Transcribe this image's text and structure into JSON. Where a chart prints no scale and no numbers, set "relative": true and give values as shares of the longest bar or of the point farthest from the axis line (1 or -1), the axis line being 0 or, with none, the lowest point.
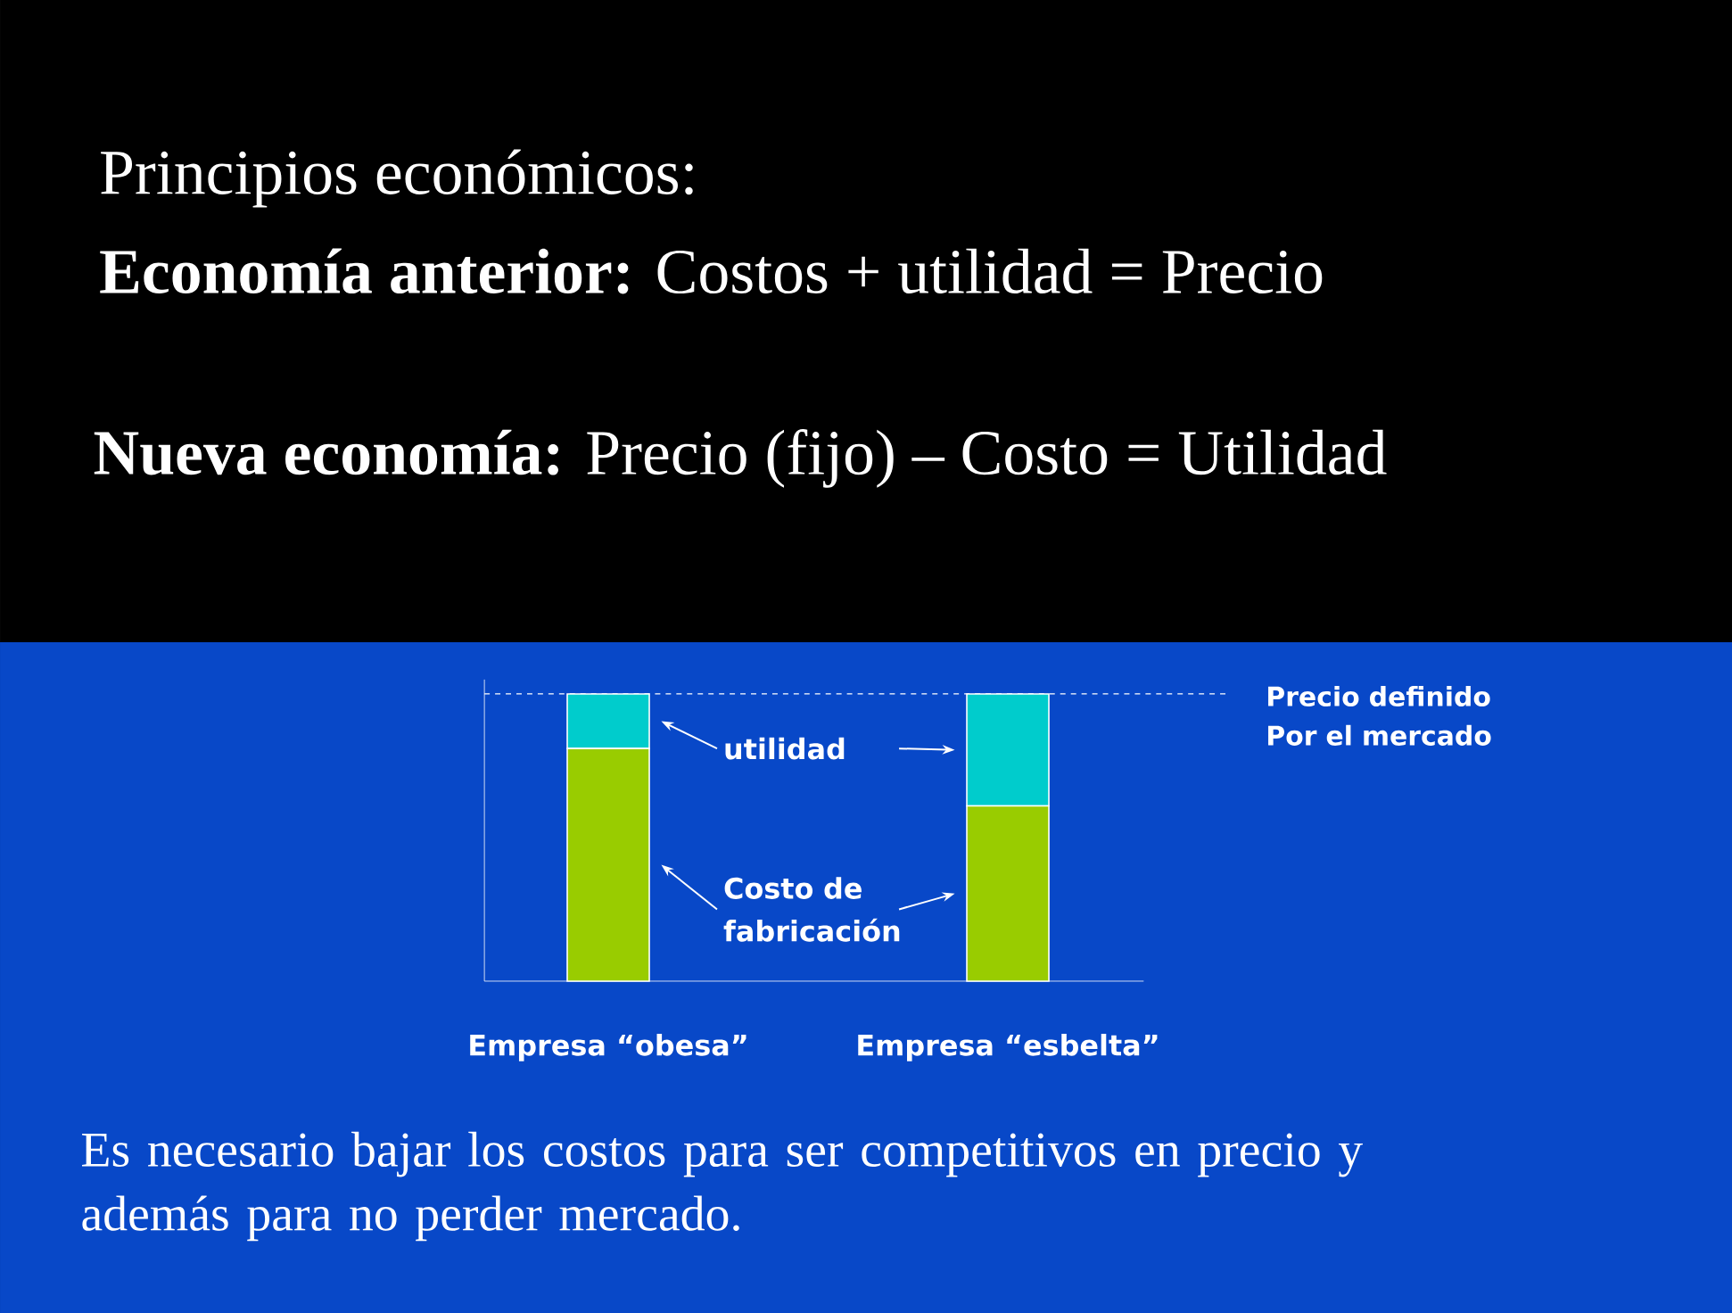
{
  "chart_data": {
    "type": "bar",
    "title": "Principios económicos:",
    "subtitle": "**Economía anterior:** Costos + utilidad = Precio",
    "categories": [
      "Empresa “obesa”",
      "Empresa “esbelta”"
    ],
    "series": [
      {
        "name": "Costo de fabricación",
        "color": "#99cc00",
        "values": [
          0.81,
          0.61
        ]
      },
      {
        "name": "utilidad",
        "color": "#00cccc",
        "values": [
          0.19,
          0.39
        ]
      }
    ],
    "stacked": true,
    "relative": true,
    "legend": "center",
    "ref_lines": [
      {
        "axis": "y",
        "value": 1,
        "label": "Precio definido Por el mercado",
        "line_style": "dashed",
        "color": "#ffffff"
      }
    ],
    "annotations": [
      "**Nueva economía:** Precio (fijo) – Costo = Utilidad",
      "Es necesario bajar los costos para ser competitivos en precio y además para no perder mercado."
    ]
  }
}
